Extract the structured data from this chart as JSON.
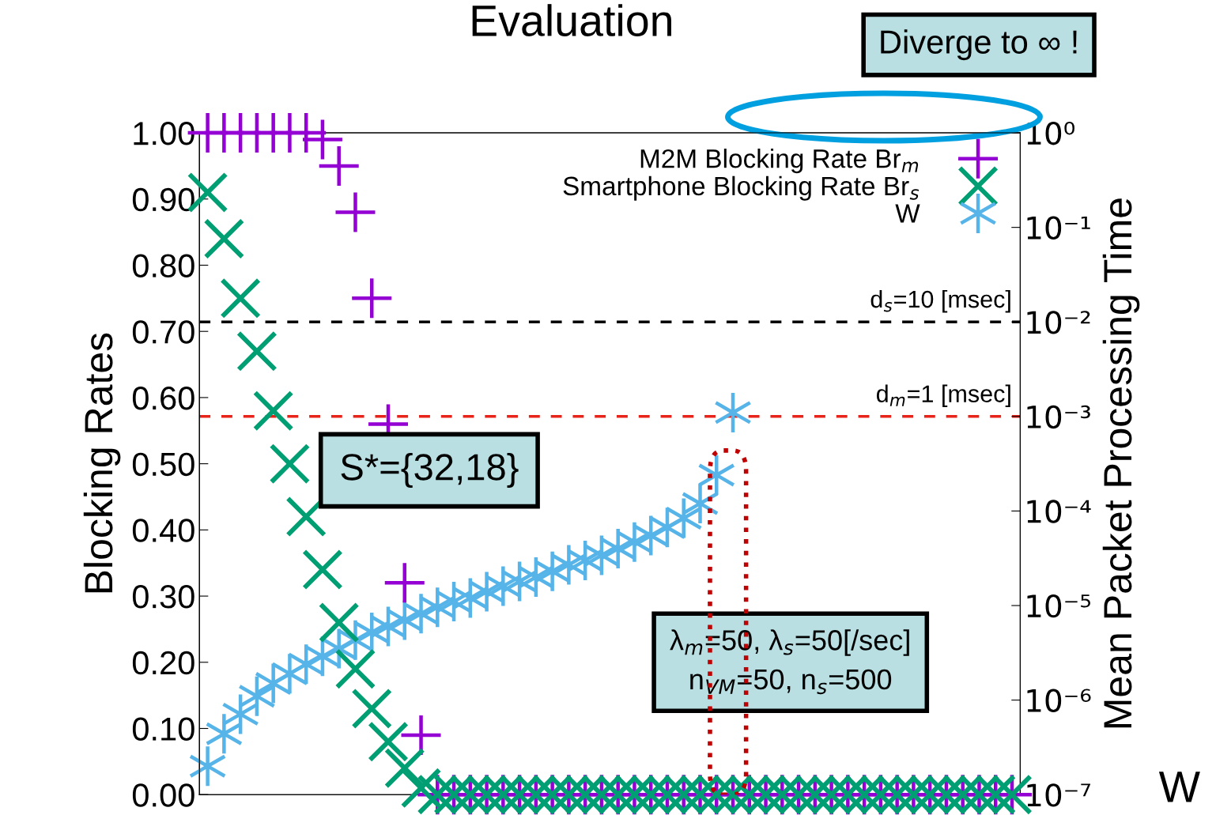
{
  "chart_data": {
    "type": "scatter",
    "title": "Evaluation",
    "ylabel": "Blocking Rates",
    "y2label": "Mean Packet Processing Time",
    "categories": [
      null,
      null,
      null,
      null,
      null,
      null,
      null,
      null,
      null,
      null,
      null,
      null,
      null,
      null,
      null,
      null,
      null,
      null,
      null,
      null,
      null,
      null,
      null,
      null,
      null,
      null,
      null,
      null,
      null,
      null,
      null,
      null,
      null,
      null,
      null,
      null,
      null,
      null,
      null,
      null,
      null,
      null,
      null,
      null,
      null,
      null,
      null,
      null,
      null,
      null
    ],
    "ylim": [
      0,
      1
    ],
    "yticks": [
      {
        "value": 0,
        "label": "0.00"
      },
      {
        "value": 0.1,
        "label": "0.10"
      },
      {
        "value": 0.2,
        "label": "0.20"
      },
      {
        "value": 0.3,
        "label": "0.30"
      },
      {
        "value": 0.4,
        "label": "0.40"
      },
      {
        "value": 0.5,
        "label": "0.50"
      },
      {
        "value": 0.6,
        "label": "0.60"
      },
      {
        "value": 0.7,
        "label": "0.70"
      },
      {
        "value": 0.8,
        "label": "0.80"
      },
      {
        "value": 0.9,
        "label": "0.90"
      },
      {
        "value": 1,
        "label": "1.00"
      }
    ],
    "log": "y2",
    "y2lim": [
      1e-07,
      1
    ],
    "y2ticks": [
      {
        "value": 1e-07,
        "label": "10⁻⁷"
      },
      {
        "value": 1e-06,
        "label": "10⁻⁶"
      },
      {
        "value": 1e-05,
        "label": "10⁻⁵"
      },
      {
        "value": 0.0001,
        "label": "10⁻⁴"
      },
      {
        "value": 0.001,
        "label": "10⁻³"
      },
      {
        "value": 0.01,
        "label": "10⁻²"
      },
      {
        "value": 0.1,
        "label": "10⁻¹"
      },
      {
        "value": 1,
        "label": "10⁰"
      }
    ],
    "series": [
      {
        "name": "M2M Blocking Rate Br$_{m}$",
        "color": "#9400d3",
        "marker": "plus",
        "values": [
          1,
          1,
          1,
          1,
          1,
          1,
          1,
          0.99,
          0.95,
          0.88,
          0.75,
          0.56,
          0.32,
          0.09,
          0,
          0,
          0,
          0,
          0,
          0,
          0,
          0,
          0,
          0,
          0,
          0,
          0,
          0,
          0,
          0,
          0,
          0,
          0,
          0,
          0,
          0,
          0,
          0,
          0,
          0,
          0,
          0,
          0,
          0,
          0,
          0,
          0,
          0,
          0,
          0
        ]
      },
      {
        "name": "Smartphone Blocking Rate Br$_{s}$",
        "color": "#009e73",
        "marker": "cross",
        "values": [
          0.91,
          0.84,
          0.75,
          0.67,
          0.58,
          0.5,
          0.42,
          0.34,
          0.26,
          0.19,
          0.13,
          0.08,
          0.04,
          0.01,
          0,
          0,
          0,
          0,
          0,
          0,
          0,
          0,
          0,
          0,
          0,
          0,
          0,
          0,
          0,
          0,
          0,
          0,
          0,
          0,
          0,
          0,
          0,
          0,
          0,
          0,
          0,
          0,
          0,
          0,
          0,
          0,
          0,
          0,
          0,
          0
        ]
      },
      {
        "name": "W",
        "color": "#56b4e9",
        "marker": "star",
        "axis": "y2",
        "values": [
          2e-07,
          4.4e-07,
          7.1e-07,
          1.1e-06,
          1.5e-06,
          1.9e-06,
          2.4e-06,
          2.9e-06,
          3.5e-06,
          4.3e-06,
          5.2e-06,
          6e-06,
          7e-06,
          8.2e-06,
          9.6e-06,
          1.1e-05,
          1.2e-05,
          1.4e-05,
          1.6e-05,
          1.8e-05,
          2e-05,
          2.3e-05,
          2.7e-05,
          3e-05,
          3.4e-05,
          4e-05,
          4.7e-05,
          5.5e-05,
          6.7e-05,
          8.4e-05,
          0.00012,
          0.00024,
          0.0011,
          null,
          null,
          null,
          null,
          null,
          null,
          null,
          null,
          null,
          null,
          null,
          null,
          null,
          null,
          null,
          null,
          null
        ]
      }
    ],
    "ref_lines": [
      {
        "axis": "y2",
        "value": 0.01,
        "label": "d$_{s}$=10 [msec]",
        "color": "#000000",
        "line_style": "dashed"
      },
      {
        "axis": "y2",
        "value": 0.001,
        "label": "d$_{m}$=1 [msec]",
        "color": "#e8231a",
        "line_style": "dashed"
      }
    ],
    "legend": "top right",
    "grid": false,
    "annotations": [
      "Diverge to ∞ !",
      "S*={32,18}",
      "λ$_{m}$=50, λ$_{s}$=50[/sec]\nn$_{VM}$=50, n$_{s}$=500",
      "W"
    ]
  }
}
